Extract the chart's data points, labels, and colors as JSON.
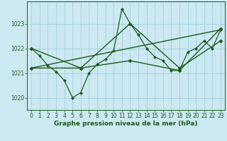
{
  "title": "Graphe pression niveau de la mer (hPa)",
  "bg_color": "#cce8f0",
  "line_color": "#1a5c1a",
  "grid_color": "#99cce0",
  "xlim": [
    -0.5,
    23.5
  ],
  "ylim": [
    1019.5,
    1023.9
  ],
  "yticks": [
    1020,
    1021,
    1022,
    1023
  ],
  "xticks": [
    0,
    1,
    2,
    3,
    4,
    5,
    6,
    7,
    8,
    9,
    10,
    11,
    12,
    13,
    14,
    15,
    16,
    17,
    18,
    19,
    20,
    21,
    22,
    23
  ],
  "series": [
    {
      "x": [
        0,
        1,
        2,
        3,
        4,
        5,
        6,
        7,
        8,
        9,
        10,
        11,
        12,
        13,
        14,
        15,
        16,
        17,
        18,
        19,
        20,
        21,
        22,
        23
      ],
      "y": [
        1022.0,
        1021.7,
        1021.3,
        1021.05,
        1020.7,
        1020.0,
        1020.2,
        1021.0,
        1021.35,
        1021.55,
        1021.9,
        1023.6,
        1023.0,
        1022.55,
        1022.0,
        1021.65,
        1021.5,
        1021.1,
        1021.1,
        1021.85,
        1022.0,
        1022.3,
        1022.0,
        1022.75
      ],
      "marker": "D",
      "markersize": 2.0,
      "linewidth": 0.9
    },
    {
      "x": [
        0,
        6,
        12,
        18,
        23
      ],
      "y": [
        1021.2,
        1021.2,
        1021.5,
        1021.1,
        1022.8
      ],
      "marker": "D",
      "markersize": 2.5,
      "linewidth": 1.0
    },
    {
      "x": [
        0,
        23
      ],
      "y": [
        1021.2,
        1022.75
      ],
      "marker": null,
      "markersize": 0,
      "linewidth": 1.0
    },
    {
      "x": [
        0,
        6,
        12,
        18,
        23
      ],
      "y": [
        1022.0,
        1021.2,
        1023.0,
        1021.2,
        1022.3
      ],
      "marker": "D",
      "markersize": 2.5,
      "linewidth": 1.0
    }
  ],
  "tick_fontsize": 5.5,
  "title_fontsize": 6.5
}
